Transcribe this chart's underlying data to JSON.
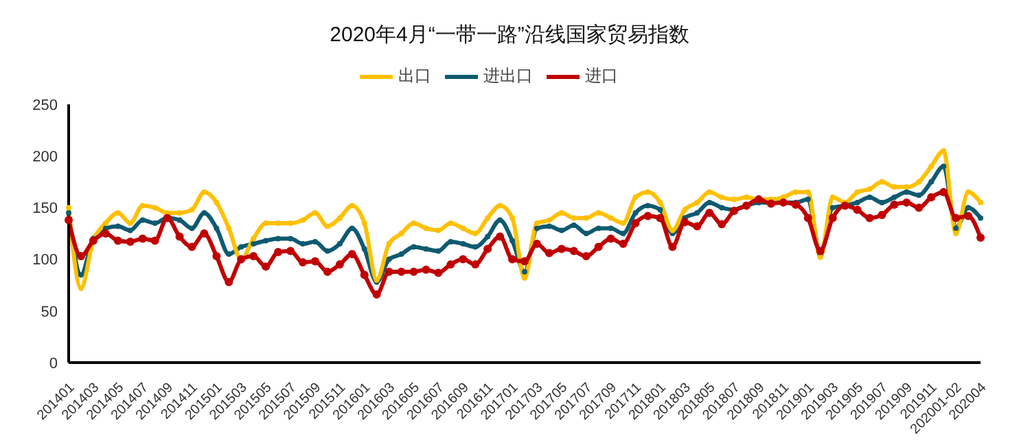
{
  "chart_data": {
    "type": "line",
    "title": "2020年4月“一带一路”沿线国家贸易指数",
    "categories": [
      "201401",
      null,
      "201403",
      null,
      "201405",
      null,
      "201407",
      null,
      "201409",
      null,
      "201411",
      null,
      "201501",
      null,
      "201503",
      null,
      "201505",
      null,
      "201507",
      null,
      "201509",
      null,
      "201511",
      null,
      "201601",
      null,
      "201603",
      null,
      "201605",
      null,
      "201607",
      null,
      "201609",
      null,
      "201611",
      null,
      "201701",
      null,
      "201703",
      null,
      "201705",
      null,
      "201707",
      null,
      "201709",
      null,
      "201711",
      null,
      "201801",
      null,
      "201803",
      null,
      "201805",
      null,
      "201807",
      null,
      "201809",
      null,
      "201811",
      null,
      "201901",
      null,
      "201903",
      null,
      "201905",
      null,
      "201907",
      null,
      "201909",
      null,
      "201911",
      null,
      "202001-02",
      null,
      "202004"
    ],
    "series": [
      {
        "name": "进出口",
        "color": "#0e5a70",
        "values": [
          145,
          85,
          120,
          130,
          132,
          128,
          138,
          135,
          140,
          138,
          130,
          145,
          130,
          105,
          112,
          115,
          118,
          120,
          120,
          115,
          117,
          108,
          115,
          130,
          110,
          78,
          100,
          105,
          112,
          110,
          108,
          117,
          115,
          112,
          122,
          138,
          118,
          88,
          130,
          132,
          128,
          133,
          125,
          130,
          130,
          125,
          145,
          152,
          148,
          125,
          140,
          145,
          155,
          150,
          148,
          152,
          155,
          155,
          155,
          155,
          158,
          105,
          150,
          152,
          155,
          160,
          155,
          160,
          165,
          162,
          175,
          190,
          130,
          150,
          140
        ]
      },
      {
        "name": "出口",
        "color": "#ffc000",
        "values": [
          150,
          72,
          118,
          135,
          145,
          135,
          152,
          150,
          145,
          145,
          148,
          165,
          155,
          130,
          100,
          120,
          135,
          135,
          135,
          138,
          145,
          132,
          140,
          152,
          135,
          80,
          115,
          125,
          135,
          130,
          128,
          135,
          130,
          125,
          140,
          152,
          140,
          82,
          135,
          138,
          145,
          140,
          140,
          145,
          140,
          135,
          160,
          165,
          155,
          128,
          148,
          155,
          165,
          160,
          158,
          160,
          158,
          158,
          160,
          165,
          165,
          102,
          160,
          155,
          165,
          168,
          175,
          170,
          170,
          175,
          190,
          205,
          125,
          165,
          155
        ]
      },
      {
        "name": "进口",
        "color": "#c00000",
        "values": [
          138,
          103,
          118,
          125,
          118,
          117,
          120,
          118,
          140,
          122,
          112,
          125,
          103,
          78,
          100,
          103,
          93,
          107,
          108,
          97,
          98,
          88,
          95,
          105,
          85,
          66,
          88,
          88,
          88,
          90,
          87,
          95,
          100,
          95,
          110,
          122,
          100,
          98,
          115,
          106,
          110,
          108,
          103,
          112,
          120,
          115,
          135,
          142,
          140,
          112,
          136,
          132,
          145,
          134,
          147,
          152,
          158,
          154,
          155,
          153,
          140,
          108,
          140,
          152,
          148,
          140,
          143,
          153,
          155,
          150,
          160,
          165,
          140,
          142,
          121
        ]
      }
    ],
    "ylim": [
      0,
      250
    ],
    "yticks": [
      0,
      50,
      100,
      150,
      200,
      250
    ],
    "legend": "top",
    "marker": "circle",
    "line_style": "solid"
  }
}
